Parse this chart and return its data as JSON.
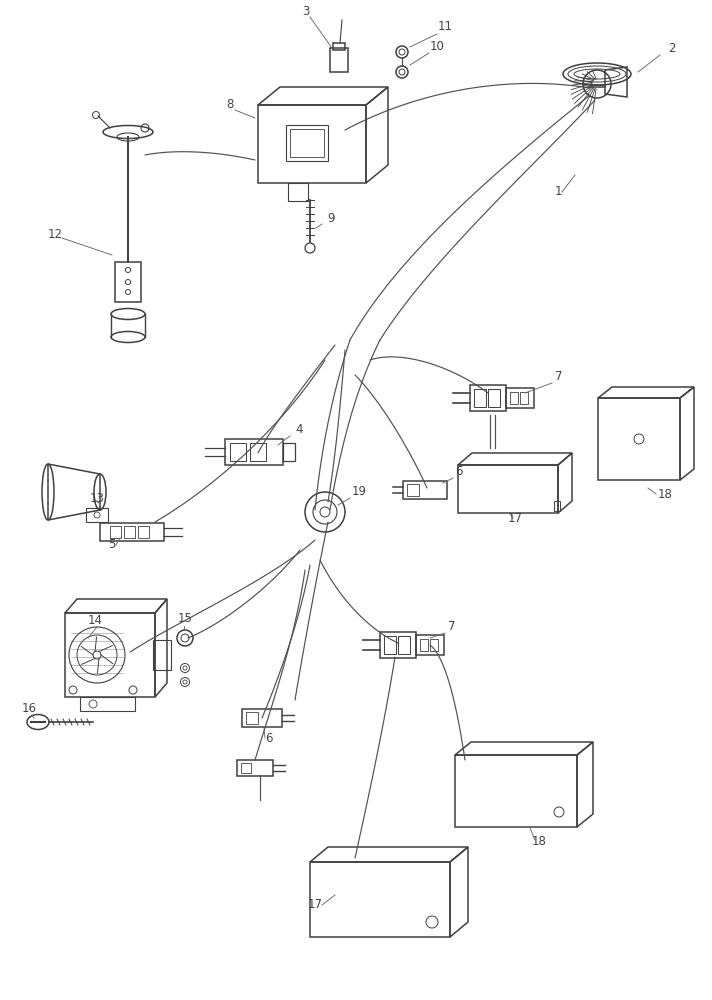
{
  "background_color": "#ffffff",
  "line_color": "#404040",
  "wire_color": "#505050",
  "text_color": "#444444",
  "fig_width": 7.12,
  "fig_height": 10.0,
  "dpi": 100,
  "fs_label": 8.5,
  "lw_part": 1.1,
  "lw_wire": 0.85
}
